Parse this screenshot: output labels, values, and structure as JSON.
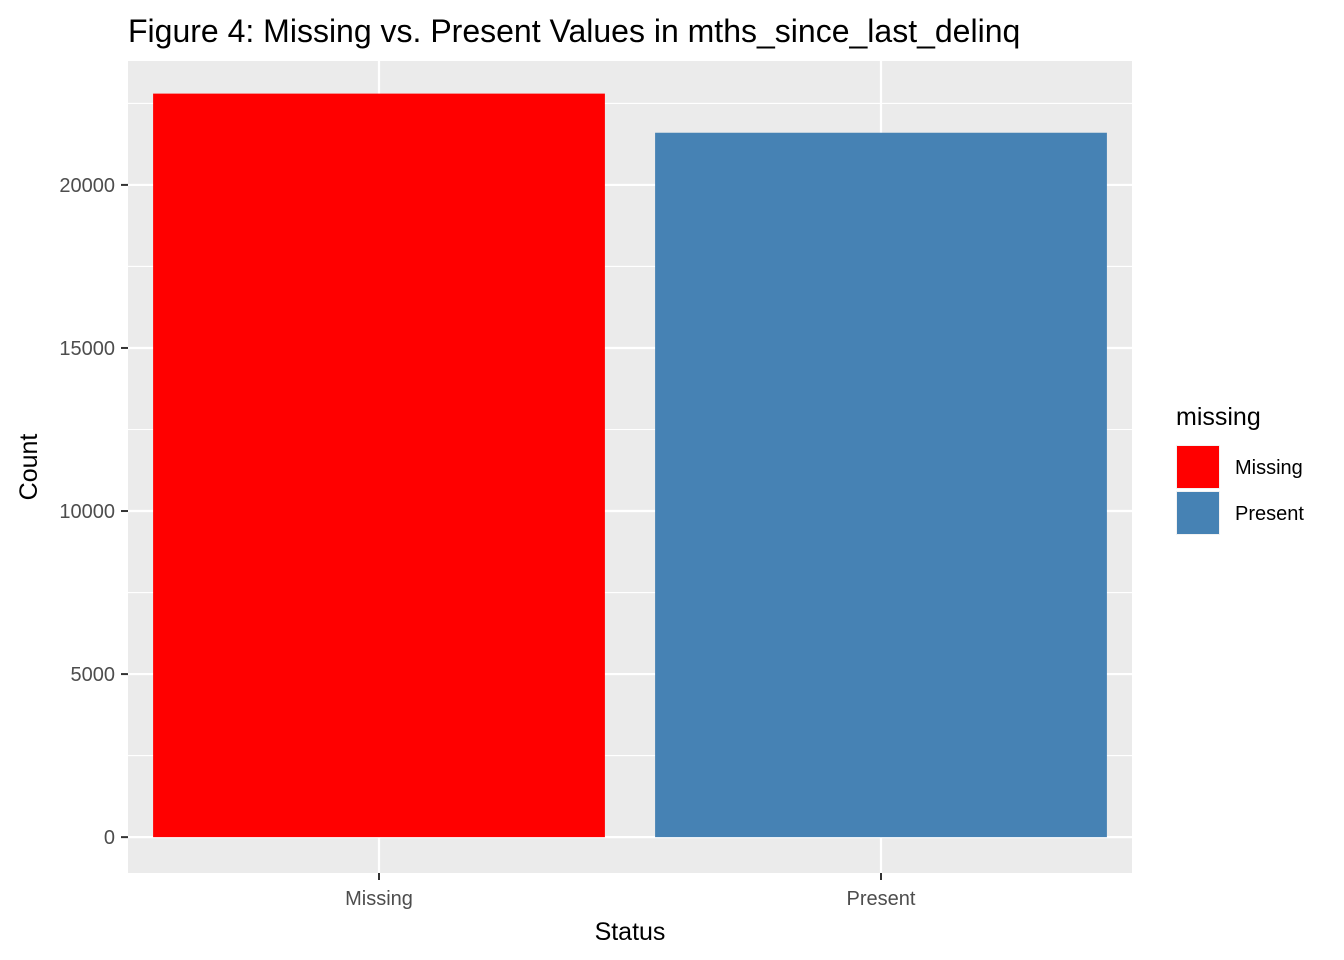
{
  "chart_data": {
    "type": "bar",
    "title": "Figure 4: Missing vs. Present Values in mths_since_last_delinq",
    "xlabel": "Status",
    "ylabel": "Count",
    "categories": [
      "Missing",
      "Present"
    ],
    "values": [
      22800,
      21600
    ],
    "colors": [
      "#ff0000",
      "#4682b4"
    ],
    "ylim": [
      -1100,
      23800
    ],
    "yticks": [
      0,
      5000,
      10000,
      15000,
      20000
    ],
    "ytick_labels": [
      "0",
      "5000",
      "10000",
      "15000",
      "20000"
    ],
    "grid": true,
    "panel_background": "#ebebeb",
    "grid_color": "#ffffff",
    "legend": {
      "title": "missing",
      "position": "right",
      "entries": [
        {
          "label": "Missing",
          "color": "#ff0000"
        },
        {
          "label": "Present",
          "color": "#4682b4"
        }
      ]
    }
  }
}
